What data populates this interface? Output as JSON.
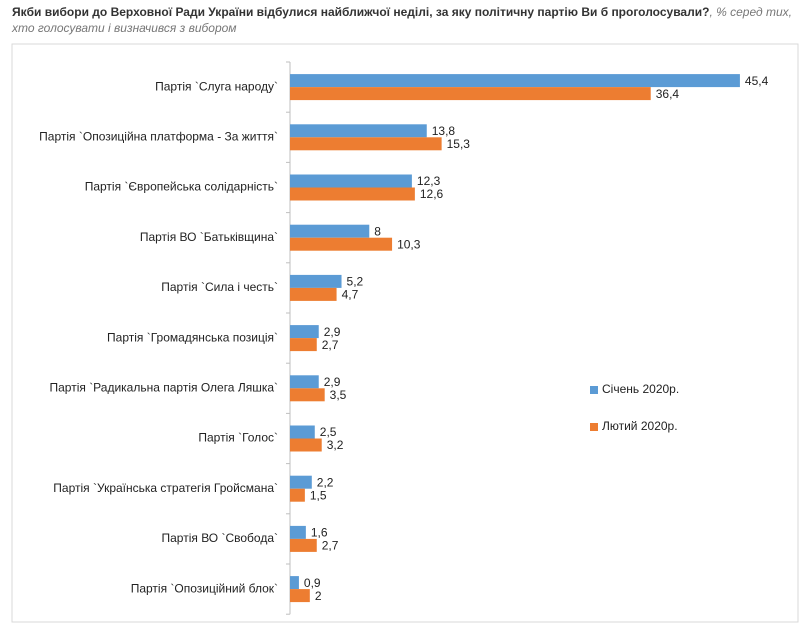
{
  "chart_data": {
    "type": "bar",
    "orientation": "horizontal",
    "title": "Якби вибори до Верховної Ради України відбулися найближчої неділі, за яку політичну партію Ви б проголосували?",
    "subtitle": ", % серед тих, хто голосувати і визначився з вибором",
    "categories": [
      "Партія `Слуга народу`",
      "Партія `Опозиційна платформа - За життя`",
      "Партія `Європейська солідарність`",
      "Партія ВО `Батьківщина`",
      "Партія `Сила і честь`",
      "Партія `Громадянська позиція`",
      "Партія `Радикальна партія Олега Ляшка`",
      "Партія `Голос`",
      "Партія `Українська стратегія Гройсмана`",
      "Партія ВО `Свобода`",
      "Партія `Опозиційний блок`"
    ],
    "series": [
      {
        "name": "Січень 2020р.",
        "color": "#5b9bd5",
        "values": [
          45.4,
          13.8,
          12.3,
          8,
          5.2,
          2.9,
          2.9,
          2.5,
          2.2,
          1.6,
          0.9
        ],
        "value_labels": [
          "45,4",
          "13,8",
          "12,3",
          "8",
          "5,2",
          "2,9",
          "2,9",
          "2,5",
          "2,2",
          "1,6",
          "0,9"
        ]
      },
      {
        "name": "Лютий 2020р.",
        "color": "#ed7d31",
        "values": [
          36.4,
          15.3,
          12.6,
          10.3,
          4.7,
          2.7,
          3.5,
          3.2,
          1.5,
          2.7,
          2
        ],
        "value_labels": [
          "36,4",
          "15,3",
          "12,6",
          "10,3",
          "4,7",
          "2,7",
          "3,5",
          "3,2",
          "1,5",
          "2,7",
          "2"
        ]
      }
    ],
    "legend": "right"
  }
}
